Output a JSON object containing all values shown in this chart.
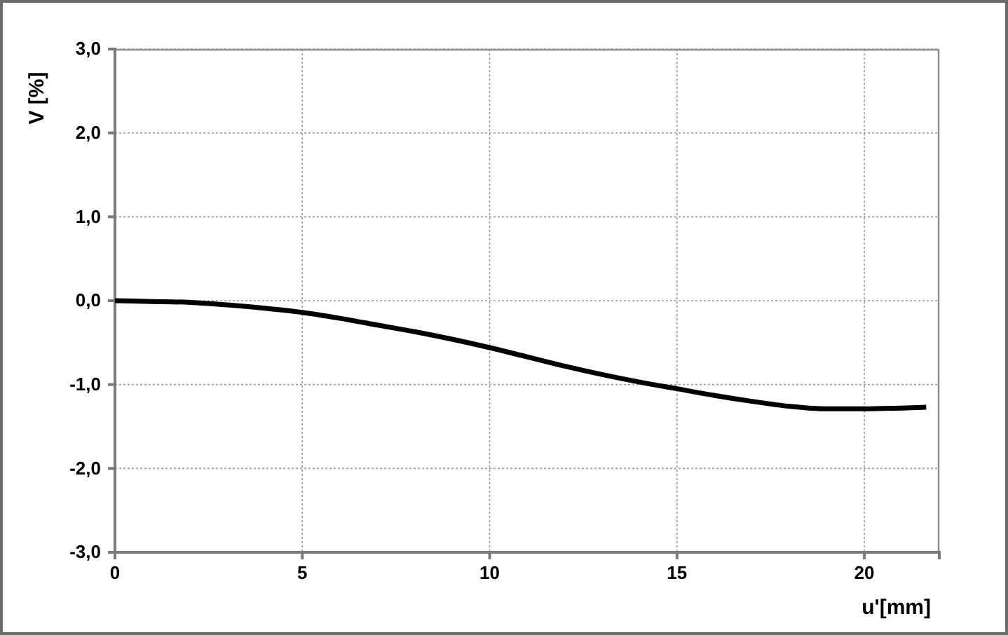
{
  "chart_data": {
    "type": "line",
    "xlabel": "u'[mm]",
    "ylabel": "V [%]",
    "xlim": [
      0,
      22
    ],
    "xticks": [
      0,
      5,
      10,
      15,
      20
    ],
    "ylim": [
      -3,
      3
    ],
    "yticks": [
      {
        "value": -3,
        "label": "-3,0"
      },
      {
        "value": -2,
        "label": "-2,0"
      },
      {
        "value": -1,
        "label": "-1,0"
      },
      {
        "value": 0,
        "label": "0,0"
      },
      {
        "value": 1,
        "label": "1,0"
      },
      {
        "value": 2,
        "label": "2,0"
      },
      {
        "value": 3,
        "label": "3,0"
      }
    ],
    "grid": true,
    "marker": "none",
    "line_style": "solid",
    "series": [
      {
        "color": "#000000",
        "x": [
          0,
          1,
          2,
          3,
          4,
          5,
          6,
          7,
          8,
          9,
          10,
          11,
          12,
          13,
          14,
          15,
          16,
          17,
          18,
          19,
          20,
          21,
          21.65
        ],
        "values": [
          0,
          -0.01,
          -0.02,
          -0.05,
          -0.09,
          -0.14,
          -0.21,
          -0.29,
          -0.37,
          -0.46,
          -0.56,
          -0.67,
          -0.78,
          -0.88,
          -0.97,
          -1.05,
          -1.13,
          -1.2,
          -1.26,
          -1.29,
          -1.29,
          -1.28,
          -1.27
        ]
      }
    ]
  }
}
